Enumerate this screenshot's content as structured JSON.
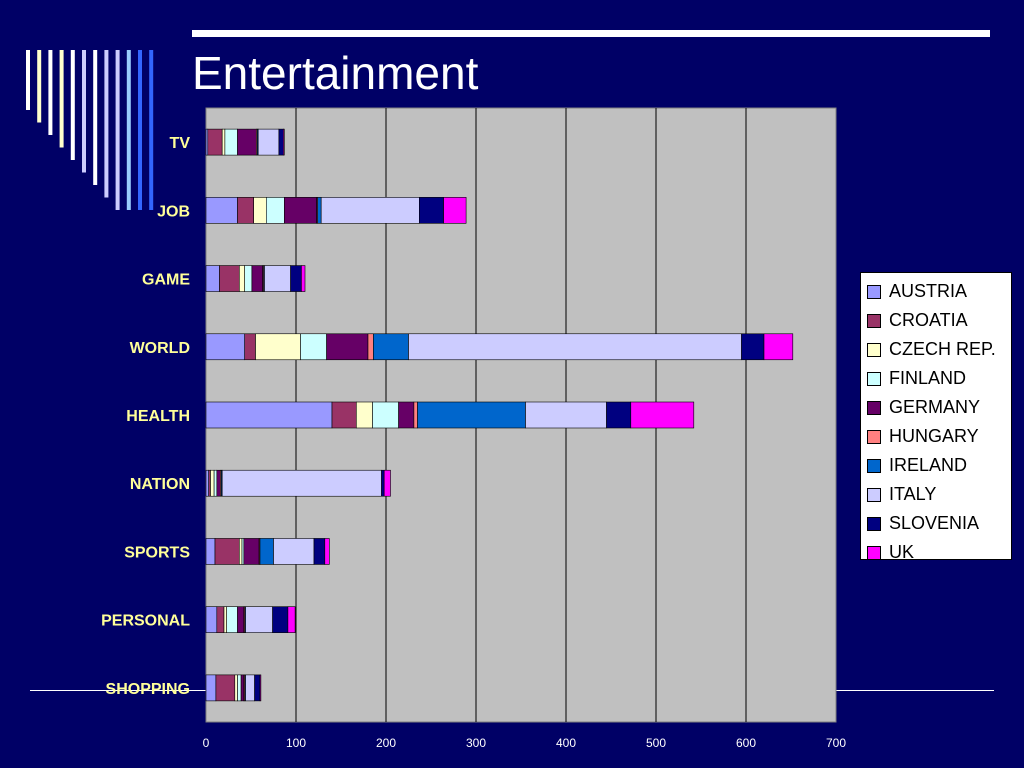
{
  "slide": {
    "title": "Entertainment"
  },
  "colors": {
    "background": "#000066",
    "plot_area": "#c0c0c0",
    "category_label": "#ffff99",
    "stripes": [
      "#ffffff",
      "#ffffcc",
      "#ffffff",
      "#ffffcc",
      "#ffffff",
      "#ccccff",
      "#ffffff",
      "#ccccff",
      "#ccccff",
      "#99ccff",
      "#3366ff",
      "#3366ff"
    ]
  },
  "chart_data": {
    "type": "bar",
    "orientation": "horizontal",
    "stacked": true,
    "categories": [
      "TV",
      "JOB",
      "GAME",
      "WORLD",
      "HEALTH",
      "NATION",
      "SPORTS",
      "PERSONAL",
      "SHOPPING"
    ],
    "xlim": [
      0,
      700
    ],
    "x_ticks": [
      0,
      100,
      200,
      300,
      400,
      500,
      600,
      700
    ],
    "grid": true,
    "legend_position": "right",
    "series": [
      {
        "name": "AUSTRIA",
        "color": "#9999ff",
        "values": [
          2,
          35,
          15,
          43,
          140,
          3,
          10,
          12,
          11
        ]
      },
      {
        "name": "CROATIA",
        "color": "#993366",
        "values": [
          16,
          18,
          22,
          12,
          27,
          2,
          27,
          8,
          21
        ]
      },
      {
        "name": "CZECH REP.",
        "color": "#ffffcc",
        "values": [
          3,
          14,
          6,
          50,
          18,
          4,
          3,
          3,
          3
        ]
      },
      {
        "name": "FINLAND",
        "color": "#ccffff",
        "values": [
          14,
          20,
          8,
          29,
          29,
          3,
          2,
          12,
          4
        ]
      },
      {
        "name": "GERMANY",
        "color": "#660066",
        "values": [
          21,
          36,
          12,
          46,
          17,
          4,
          17,
          7,
          3
        ]
      },
      {
        "name": "HUNGARY",
        "color": "#ff8080",
        "values": [
          1,
          1,
          1,
          6,
          4,
          1,
          1,
          1,
          1
        ]
      },
      {
        "name": "IRELAND",
        "color": "#0066cc",
        "values": [
          1,
          4,
          1,
          39,
          120,
          1,
          15,
          1,
          1
        ]
      },
      {
        "name": "ITALY",
        "color": "#ccccff",
        "values": [
          23,
          109,
          29,
          370,
          90,
          177,
          45,
          30,
          10
        ]
      },
      {
        "name": "SLOVENIA",
        "color": "#000080",
        "values": [
          5,
          27,
          12,
          25,
          27,
          3,
          12,
          17,
          6
        ]
      },
      {
        "name": "UK",
        "color": "#ff00ff",
        "values": [
          1,
          25,
          4,
          32,
          70,
          7,
          5,
          8,
          1
        ]
      }
    ]
  }
}
